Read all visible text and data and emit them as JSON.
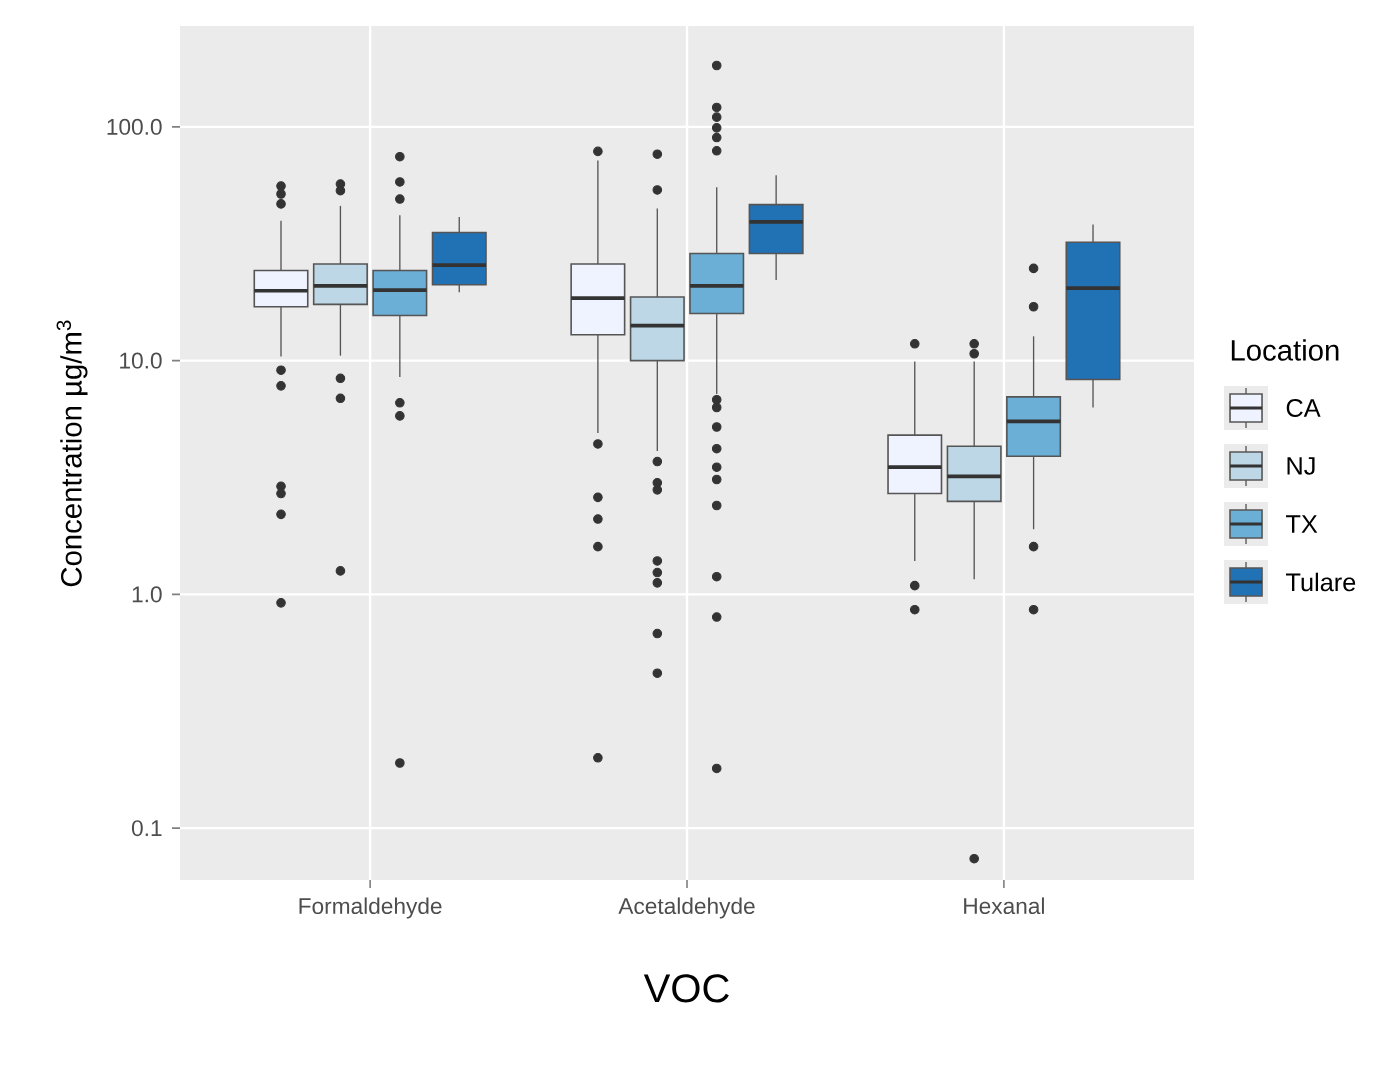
{
  "chart_data": {
    "type": "box",
    "xlabel": "VOC",
    "ylabel": "Concentration µg/m$^{3}$",
    "legend_title": "Location",
    "legend": "right",
    "log": "y",
    "grid": true,
    "categories": [
      "Formaldehyde",
      "Acetaldehyde",
      "Hexanal"
    ],
    "ylim": [
      0.06,
      270
    ],
    "yticks": [
      {
        "value": 0.1,
        "label": "0.1"
      },
      {
        "value": 1,
        "label": "1.0"
      },
      {
        "value": 10,
        "label": "10.0"
      },
      {
        "value": 100,
        "label": "100.0"
      }
    ],
    "series": [
      {
        "name": "CA",
        "color": "#eff3ff",
        "boxes": [
          {
            "low": 10.4,
            "q1": 17.0,
            "median": 19.9,
            "q3": 24.3,
            "high": 39.7,
            "outliers": [
              55.8,
              51.6,
              46.8,
              9.1,
              7.8,
              2.9,
              2.7,
              2.2,
              0.92
            ]
          },
          {
            "low": 4.9,
            "q1": 12.9,
            "median": 18.5,
            "q3": 25.9,
            "high": 71.7,
            "outliers": [
              78.5,
              4.4,
              2.6,
              2.1,
              1.6,
              0.2
            ]
          },
          {
            "low": 1.39,
            "q1": 2.7,
            "median": 3.5,
            "q3": 4.8,
            "high": 9.9,
            "outliers": [
              11.8,
              1.09,
              0.86
            ]
          }
        ]
      },
      {
        "name": "NJ",
        "color": "#bdd7e7",
        "boxes": [
          {
            "low": 10.5,
            "q1": 17.4,
            "median": 20.9,
            "q3": 25.9,
            "high": 45.9,
            "outliers": [
              56.9,
              53.3,
              8.4,
              6.9,
              1.26
            ]
          },
          {
            "low": 4.1,
            "q1": 10.0,
            "median": 14.1,
            "q3": 18.7,
            "high": 44.7,
            "outliers": [
              76.4,
              53.7,
              3.7,
              3.0,
              2.8,
              1.39,
              1.24,
              1.12,
              0.68,
              0.46
            ]
          },
          {
            "low": 1.16,
            "q1": 2.5,
            "median": 3.2,
            "q3": 4.3,
            "high": 9.9,
            "outliers": [
              11.8,
              10.7,
              0.074
            ]
          }
        ]
      },
      {
        "name": "TX",
        "color": "#6baed6",
        "boxes": [
          {
            "low": 8.5,
            "q1": 15.6,
            "median": 20.0,
            "q3": 24.3,
            "high": 41.9,
            "outliers": [
              74.5,
              58.1,
              49.1,
              6.6,
              5.8,
              0.19
            ]
          },
          {
            "low": 7.2,
            "q1": 15.9,
            "median": 20.9,
            "q3": 28.7,
            "high": 55.2,
            "outliers": [
              183,
              121,
              110,
              99,
              90,
              79,
              6.8,
              6.3,
              5.2,
              4.2,
              3.5,
              3.1,
              2.4,
              1.19,
              0.8,
              0.18
            ]
          },
          {
            "low": 1.9,
            "q1": 3.9,
            "median": 5.5,
            "q3": 7.0,
            "high": 12.7,
            "outliers": [
              24.8,
              17.0,
              1.6,
              0.86
            ]
          }
        ]
      },
      {
        "name": "Tulare",
        "color": "#2171b5",
        "boxes": [
          {
            "low": 19.6,
            "q1": 21.1,
            "median": 25.6,
            "q3": 35.3,
            "high": 41.1
          },
          {
            "low": 22.1,
            "q1": 28.7,
            "median": 39.2,
            "q3": 46.5,
            "high": 62.1
          },
          {
            "low": 6.3,
            "q1": 8.3,
            "median": 20.4,
            "q3": 32.1,
            "high": 38.2
          }
        ]
      }
    ]
  }
}
